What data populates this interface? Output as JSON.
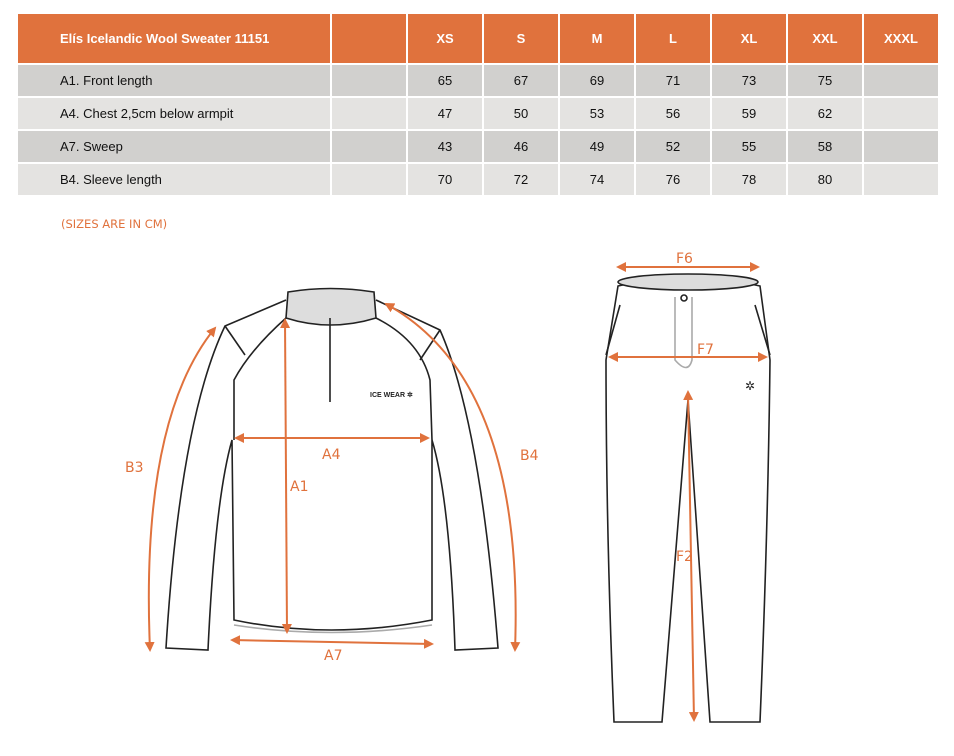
{
  "table": {
    "title": "Elís Icelandic Wool Sweater 11151",
    "sizes": [
      "XS",
      "S",
      "M",
      "L",
      "XL",
      "XXL",
      "XXXL"
    ],
    "rows": [
      {
        "label": "A1. Front length",
        "values": [
          "65",
          "67",
          "69",
          "71",
          "73",
          "75",
          ""
        ]
      },
      {
        "label": "A4. Chest 2,5cm below armpit",
        "values": [
          "47",
          "50",
          "53",
          "56",
          "59",
          "62",
          ""
        ]
      },
      {
        "label": "A7. Sweep",
        "values": [
          "43",
          "46",
          "49",
          "52",
          "55",
          "58",
          ""
        ]
      },
      {
        "label": "B4. Sleeve length",
        "values": [
          "70",
          "72",
          "74",
          "76",
          "78",
          "80",
          ""
        ]
      }
    ]
  },
  "note": "(SIZES ARE IN CM)",
  "diagram": {
    "accent": "#e0723d",
    "logo": "ICE WEAR",
    "labels": {
      "B3": "B3",
      "B4": "B4",
      "A1": "A1",
      "A4": "A4",
      "A7": "A7",
      "F6": "F6",
      "F7": "F7",
      "F2": "F2"
    }
  }
}
